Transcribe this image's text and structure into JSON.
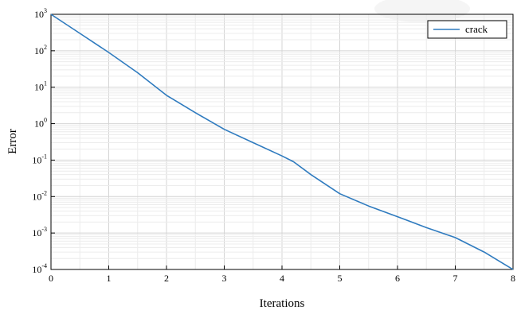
{
  "chart_data": {
    "type": "line",
    "title": "",
    "xlabel": "Iterations",
    "ylabel": "Error",
    "xlim": [
      0,
      8
    ],
    "ylim": [
      0.0001,
      1000
    ],
    "yscale": "log",
    "grid": true,
    "legend_position": "top-right",
    "x_ticks": [
      "0",
      "1",
      "2",
      "3",
      "4",
      "5",
      "6",
      "7",
      "8"
    ],
    "y_ticks": [
      {
        "base": "10",
        "exp": "-4"
      },
      {
        "base": "10",
        "exp": "-3"
      },
      {
        "base": "10",
        "exp": "-2"
      },
      {
        "base": "10",
        "exp": "-1"
      },
      {
        "base": "10",
        "exp": "0"
      },
      {
        "base": "10",
        "exp": "1"
      },
      {
        "base": "10",
        "exp": "2"
      },
      {
        "base": "10",
        "exp": "3"
      }
    ],
    "series": [
      {
        "name": "crack",
        "color": "#2f7bbf",
        "x": [
          0.0,
          0.5,
          1.0,
          1.5,
          2.0,
          2.5,
          3.0,
          3.5,
          4.0,
          4.2,
          4.5,
          5.0,
          5.5,
          6.0,
          6.5,
          7.0,
          7.5,
          8.0
        ],
        "y": [
          1000,
          300,
          90,
          25,
          6,
          2,
          0.7,
          0.3,
          0.13,
          0.09,
          0.04,
          0.012,
          0.0055,
          0.0028,
          0.0014,
          0.00075,
          0.0003,
          0.0001
        ]
      }
    ]
  }
}
